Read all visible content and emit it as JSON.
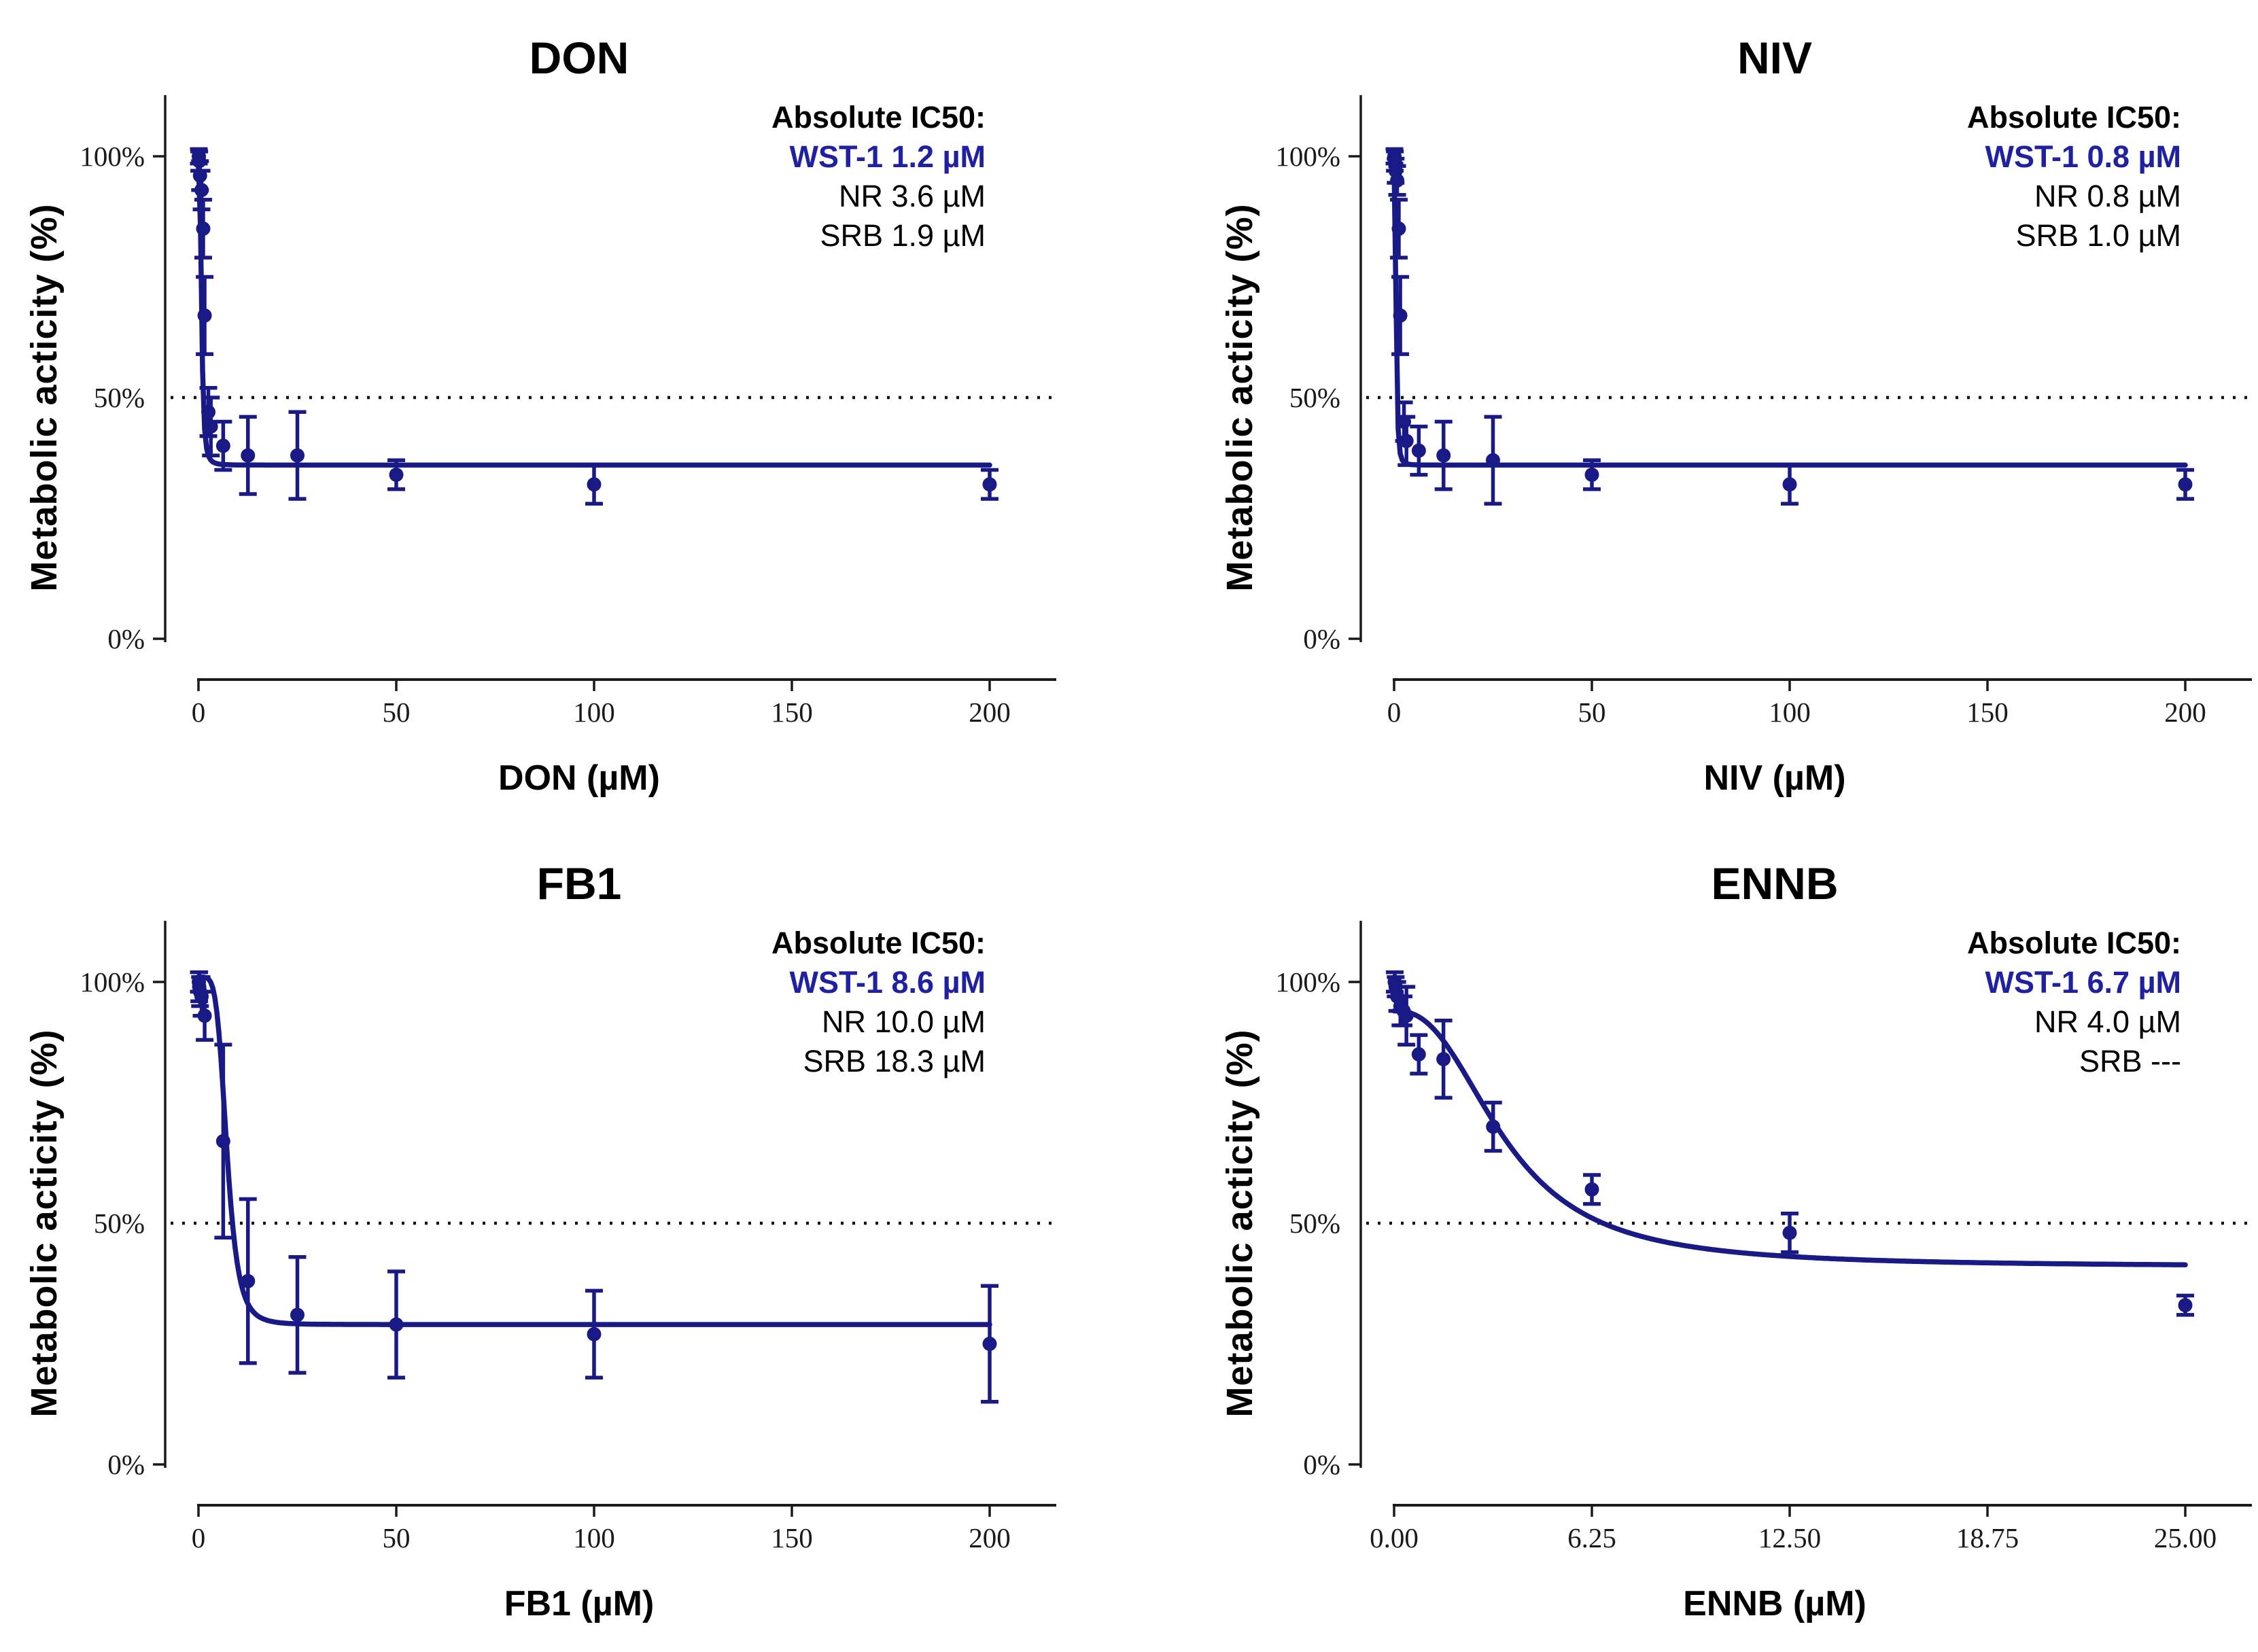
{
  "page": {
    "background": "#ffffff"
  },
  "colors": {
    "series_navy": "#1a1a87",
    "wst1_text_navy": "#2021a0",
    "axis_black": "#1a1a1a",
    "reference_line_black": "#111111"
  },
  "chart_data": [
    {
      "type": "scatter",
      "title": "DON",
      "xlabel": "DON (µM)",
      "ylabel": "Metabolic acticity (%)",
      "xticks": {
        "labels": [
          "0",
          "50",
          "100",
          "150",
          "200"
        ],
        "values": [
          0,
          50,
          100,
          150,
          200
        ]
      },
      "yticks": {
        "labels": [
          "100%",
          "50%",
          "0%"
        ],
        "values": [
          100,
          50,
          0
        ]
      },
      "xlim": [
        0,
        200
      ],
      "ylim": [
        0,
        112
      ],
      "reference_line_pct": 50,
      "grid": false,
      "annotation": {
        "header": "Absolute IC50:",
        "wst1": "WST-1 1.2 µM",
        "nr": "NR 3.6 µM",
        "srb": "SRB 1.9 µM"
      },
      "fit_curve": {
        "model": "4PL",
        "top": 98,
        "bottom": 36,
        "ic50": 0.8,
        "hill": 3
      },
      "points_xye": [
        [
          0.09,
          100,
          1.5
        ],
        [
          0.19,
          99,
          2
        ],
        [
          0.39,
          96,
          3
        ],
        [
          0.78,
          93,
          4
        ],
        [
          1.2,
          85,
          6
        ],
        [
          1.56,
          67,
          8
        ],
        [
          2.5,
          47,
          5
        ],
        [
          3.13,
          44,
          6
        ],
        [
          6.25,
          40,
          5
        ],
        [
          12.5,
          38,
          8
        ],
        [
          25,
          38,
          9
        ],
        [
          50,
          34,
          3
        ],
        [
          100,
          32,
          4
        ],
        [
          200,
          32,
          3
        ]
      ]
    },
    {
      "type": "scatter",
      "title": "NIV",
      "xlabel": "NIV (µM)",
      "ylabel": "Metabolic acticity (%)",
      "xticks": {
        "labels": [
          "0",
          "50",
          "100",
          "150",
          "200"
        ],
        "values": [
          0,
          50,
          100,
          150,
          200
        ]
      },
      "yticks": {
        "labels": [
          "100%",
          "50%",
          "0%"
        ],
        "values": [
          100,
          50,
          0
        ]
      },
      "xlim": [
        0,
        200
      ],
      "ylim": [
        0,
        112
      ],
      "reference_line_pct": 50,
      "grid": false,
      "annotation": {
        "header": "Absolute IC50:",
        "wst1": "WST-1 0.8 µM",
        "nr": "NR 0.8 µM",
        "srb": "SRB 1.0 µM"
      },
      "fit_curve": {
        "model": "4PL",
        "top": 98,
        "bottom": 36,
        "ic50": 0.53,
        "hill": 3
      },
      "points_xye": [
        [
          0.09,
          100,
          1.5
        ],
        [
          0.19,
          99,
          2
        ],
        [
          0.39,
          97,
          2.5
        ],
        [
          0.78,
          95,
          3
        ],
        [
          1.2,
          85,
          6
        ],
        [
          1.56,
          67,
          8
        ],
        [
          2.5,
          45,
          4
        ],
        [
          3.13,
          41,
          5
        ],
        [
          6.25,
          39,
          5
        ],
        [
          12.5,
          38,
          7
        ],
        [
          25,
          37,
          9
        ],
        [
          50,
          34,
          3
        ],
        [
          100,
          32,
          4
        ],
        [
          200,
          32,
          3
        ]
      ]
    },
    {
      "type": "scatter",
      "title": "FB1",
      "xlabel": "FB1 (µM)",
      "ylabel": "Metabolic acticity (%)",
      "xticks": {
        "labels": [
          "0",
          "50",
          "100",
          "150",
          "200"
        ],
        "values": [
          0,
          50,
          100,
          150,
          200
        ]
      },
      "yticks": {
        "labels": [
          "100%",
          "50%",
          "0%"
        ],
        "values": [
          100,
          50,
          0
        ]
      },
      "xlim": [
        0,
        200
      ],
      "ylim": [
        0,
        112
      ],
      "reference_line_pct": 50,
      "grid": false,
      "annotation": {
        "header": "Absolute IC50:",
        "wst1": "WST-1 8.6 µM",
        "nr": "NR 10.0 µM",
        "srb": "SRB 18.3 µM"
      },
      "fit_curve": {
        "model": "4PL",
        "top": 101,
        "bottom": 29,
        "ic50": 7.2,
        "hill": 5
      },
      "points_xye": [
        [
          0.09,
          100,
          2
        ],
        [
          0.19,
          99,
          3
        ],
        [
          0.39,
          98,
          3
        ],
        [
          0.78,
          97,
          4
        ],
        [
          1.56,
          93,
          5
        ],
        [
          6.25,
          67,
          20
        ],
        [
          12.5,
          38,
          17
        ],
        [
          25,
          31,
          12
        ],
        [
          50,
          29,
          11
        ],
        [
          100,
          27,
          9
        ],
        [
          200,
          25,
          12
        ]
      ]
    },
    {
      "type": "scatter",
      "title": "ENNB",
      "xlabel": "ENNB (µM)",
      "ylabel": "Metabolic acticity (%)",
      "xticks": {
        "labels": [
          "0.00",
          "6.25",
          "12.50",
          "18.75",
          "25.00"
        ],
        "values": [
          0,
          6.25,
          12.5,
          18.75,
          25
        ]
      },
      "yticks": {
        "labels": [
          "100%",
          "50%",
          "0%"
        ],
        "values": [
          100,
          50,
          0
        ]
      },
      "xlim": [
        0,
        25
      ],
      "ylim": [
        0,
        112
      ],
      "reference_line_pct": 50,
      "grid": false,
      "annotation": {
        "header": "Absolute IC50:",
        "wst1": "WST-1 6.7 µM",
        "nr": "NR 4.0 µM",
        "srb": "SRB  ---"
      },
      "fit_curve": {
        "model": "4PL",
        "top": 94,
        "bottom": 41,
        "ic50": 3.5,
        "hill": 2.5
      },
      "points_xye": [
        [
          0.02,
          100,
          2
        ],
        [
          0.05,
          99,
          2
        ],
        [
          0.1,
          97,
          3
        ],
        [
          0.2,
          95,
          4
        ],
        [
          0.3,
          94,
          3
        ],
        [
          0.39,
          93,
          6
        ],
        [
          0.78,
          85,
          4
        ],
        [
          1.56,
          84,
          8
        ],
        [
          3.13,
          70,
          5
        ],
        [
          6.25,
          57,
          3
        ],
        [
          12.5,
          48,
          4
        ],
        [
          25,
          33,
          2
        ]
      ]
    }
  ]
}
